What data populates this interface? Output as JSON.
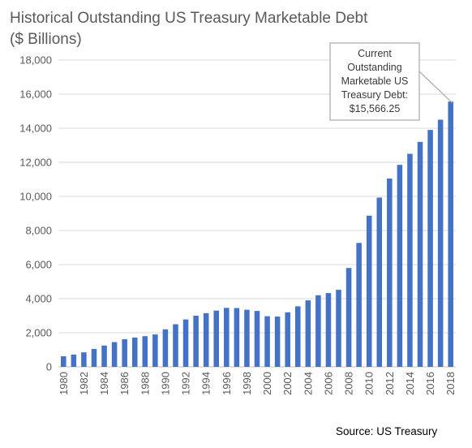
{
  "chart_data": {
    "type": "bar",
    "title": "Historical Outstanding US Treasury Marketable Debt ($ Billions)",
    "title_lines": [
      "Historical Outstanding US Treasury Marketable Debt",
      "($ Billions)"
    ],
    "source": "Source: US Treasury",
    "xlabel": "",
    "ylabel": "",
    "ylim": [
      0,
      18000
    ],
    "y_ticks": [
      0,
      2000,
      4000,
      6000,
      8000,
      10000,
      12000,
      14000,
      16000,
      18000
    ],
    "y_tick_labels": [
      "0",
      "2,000",
      "4,000",
      "6,000",
      "8,000",
      "10,000",
      "12,000",
      "14,000",
      "16,000",
      "18,000"
    ],
    "grid": true,
    "bar_color": "#4472c4",
    "categories": [
      "1980",
      "1981",
      "1982",
      "1983",
      "1984",
      "1985",
      "1986",
      "1987",
      "1988",
      "1989",
      "1990",
      "1991",
      "1992",
      "1993",
      "1994",
      "1995",
      "1996",
      "1997",
      "1998",
      "1999",
      "2000",
      "2001",
      "2002",
      "2003",
      "2004",
      "2005",
      "2006",
      "2007",
      "2008",
      "2009",
      "2010",
      "2011",
      "2012",
      "2013",
      "2014",
      "2015",
      "2016",
      "2017",
      "2018"
    ],
    "x_tick_labels": [
      "1980",
      "1982",
      "1984",
      "1986",
      "1988",
      "1990",
      "1992",
      "1994",
      "1996",
      "1998",
      "2000",
      "2002",
      "2004",
      "2006",
      "2008",
      "2010",
      "2012",
      "2014",
      "2016",
      "2018"
    ],
    "values": [
      620,
      720,
      850,
      1050,
      1250,
      1450,
      1620,
      1720,
      1800,
      1900,
      2200,
      2500,
      2780,
      3000,
      3150,
      3300,
      3460,
      3450,
      3350,
      3280,
      2970,
      2950,
      3200,
      3550,
      3900,
      4200,
      4330,
      4520,
      5800,
      7270,
      8870,
      9930,
      11050,
      11850,
      12500,
      13200,
      13900,
      14500,
      15566.25
    ],
    "annotation": {
      "lines": [
        "Current",
        "Outstanding",
        "Marketable US",
        "Treasury Debt:",
        "$15,566.25"
      ],
      "target_category": "2018"
    }
  }
}
